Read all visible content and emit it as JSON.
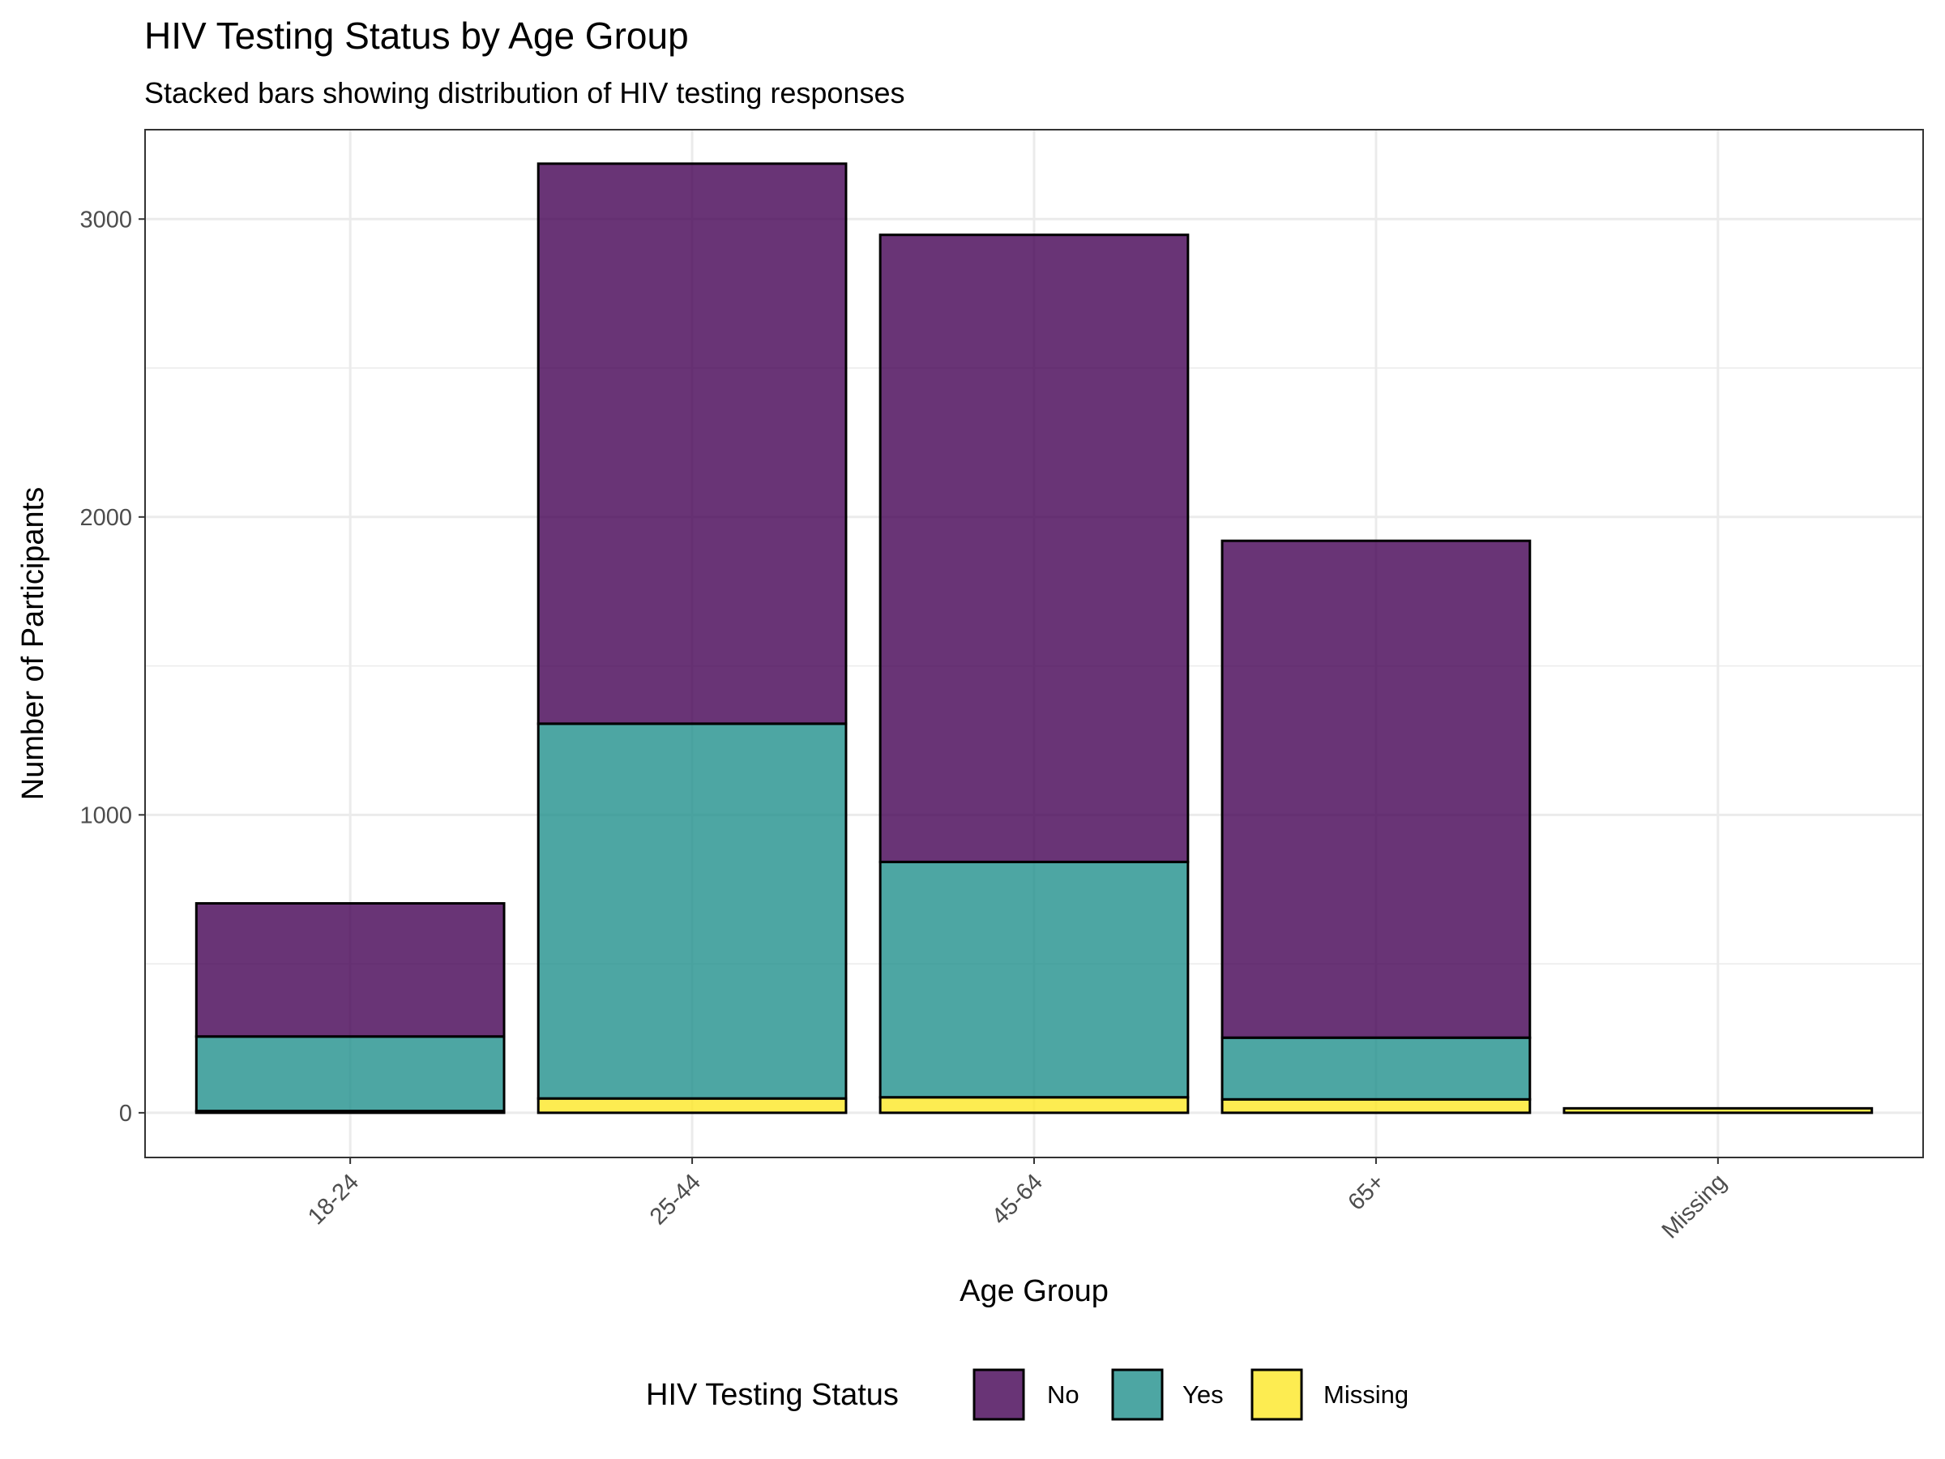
{
  "chart_data": {
    "type": "bar",
    "stacked": true,
    "title": "HIV Testing Status by Age Group",
    "subtitle": "Stacked bars showing distribution of HIV testing responses",
    "xlabel": "Age Group",
    "ylabel": "Number of Participants",
    "categories": [
      "18-24",
      "25-44",
      "45-64",
      "65+",
      "Missing"
    ],
    "series": [
      {
        "name": "No",
        "color": "#440154",
        "values": [
          447,
          1880,
          2105,
          1668,
          0
        ]
      },
      {
        "name": "Yes",
        "color": "#21908c",
        "values": [
          250,
          1258,
          790,
          207,
          0
        ]
      },
      {
        "name": "Missing",
        "color": "#fde725",
        "values": [
          6,
          48,
          52,
          45,
          15
        ]
      }
    ],
    "stack_order_bottom_to_top": [
      "Missing",
      "Yes",
      "No"
    ],
    "ylim": [
      -150,
      3300
    ],
    "yticks": [
      0,
      1000,
      2000,
      3000
    ],
    "grid": true,
    "legend": {
      "title": "HIV Testing Status",
      "position": "bottom"
    },
    "bar_outline_color": "#000000",
    "fill_opacity": 0.8
  }
}
